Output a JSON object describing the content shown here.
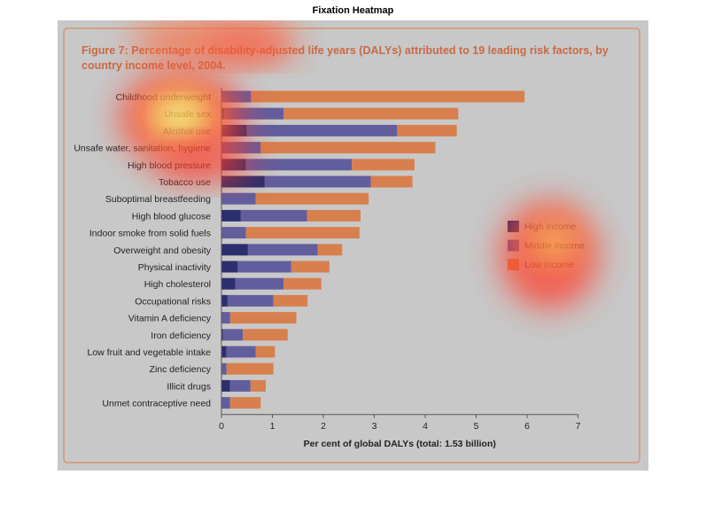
{
  "window": {
    "title": "Fixation Heatmap"
  },
  "chart_data": {
    "type": "bar",
    "orientation": "horizontal",
    "stacked": true,
    "title": "Figure 7: Percentage of disability-adjusted life years (DALYs) attributed to 19 leading risk factors, by country income level, 2004.",
    "xlabel": "Per cent of global DALYs (total: 1.53 billion)",
    "ylabel": "",
    "xlim": [
      0,
      7
    ],
    "xticks": [
      "0",
      "1",
      "2",
      "3",
      "4",
      "5",
      "6",
      "7"
    ],
    "legend_position": "right",
    "categories": [
      "Childhood underweight",
      "Unsafe sex",
      "Alcohol use",
      "Unsafe water, sanitation, hygiene",
      "High blood pressure",
      "Tobacco use",
      "Suboptimal breastfeeding",
      "High blood glucose",
      "Indoor smoke from solid fuels",
      "Overweight and obesity",
      "Physical inactivity",
      "High cholesterol",
      "Occupational risks",
      "Vitamin A deficiency",
      "Iron deficiency",
      "Low fruit and vegetable intake",
      "Zinc deficiency",
      "Illicit drugs",
      "Unmet contraceptive need"
    ],
    "series": [
      {
        "name": "High income",
        "color": "#2b2f6e",
        "values": [
          0.0,
          0.05,
          0.5,
          0.0,
          0.48,
          0.85,
          0.0,
          0.38,
          0.0,
          0.52,
          0.32,
          0.27,
          0.12,
          0.0,
          0.03,
          0.1,
          0.0,
          0.17,
          0.0
        ]
      },
      {
        "name": "Middle income",
        "color": "#625e9e",
        "values": [
          0.58,
          1.17,
          2.95,
          0.77,
          2.08,
          2.08,
          0.67,
          1.3,
          0.48,
          1.37,
          1.05,
          0.95,
          0.9,
          0.17,
          0.39,
          0.57,
          0.1,
          0.4,
          0.17
        ]
      },
      {
        "name": "Low income",
        "color": "#d87f4e",
        "values": [
          5.37,
          3.43,
          1.17,
          3.43,
          1.23,
          0.82,
          2.22,
          1.05,
          2.23,
          0.48,
          0.75,
          0.74,
          0.67,
          1.3,
          0.88,
          0.38,
          0.92,
          0.3,
          0.6
        ]
      }
    ]
  },
  "heatmap": {
    "hotspots": [
      "title",
      "Childhood underweight",
      "Unsafe sex",
      "Alcohol use",
      "High blood pressure",
      "legend"
    ]
  }
}
